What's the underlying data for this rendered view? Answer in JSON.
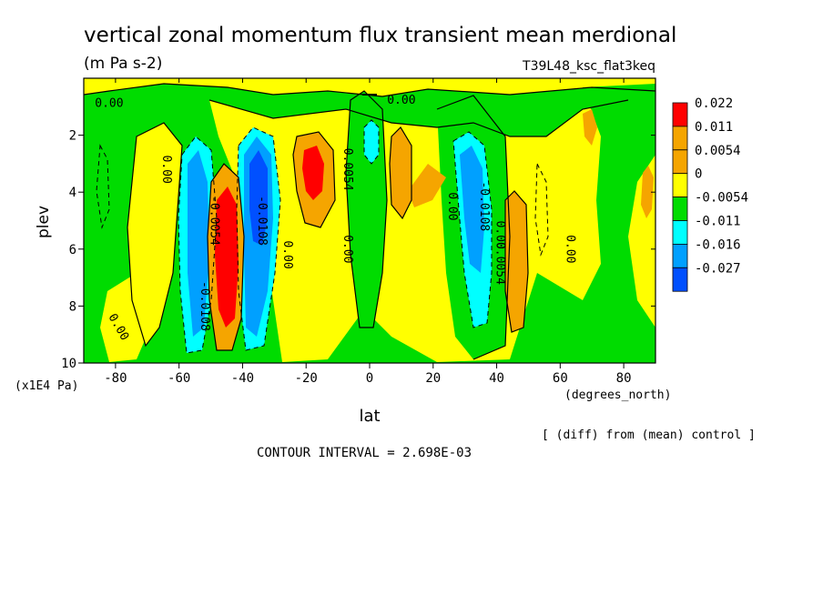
{
  "header": {
    "title": "vertical zonal momentum flux transient mean merdional",
    "units": "(m Pa s-2)",
    "run_name": "T39L48_ksc_flat3keq"
  },
  "footer": {
    "diff_note": "[ (diff) from (mean) control ]",
    "contour_interval": "CONTOUR INTERVAL = 2.698E-03"
  },
  "chart_data": {
    "type": "heatmap",
    "title": "vertical zonal momentum flux transient mean merdional",
    "xlabel": "lat",
    "x_units": "(degrees_north)",
    "ylabel": "plev",
    "y_units": "(x1E4 Pa)",
    "xlim": [
      -90,
      90
    ],
    "ylim": [
      10,
      0
    ],
    "x_ticks": [
      -80,
      -60,
      -40,
      -20,
      0,
      20,
      40,
      60,
      80
    ],
    "y_ticks": [
      2,
      4,
      6,
      8,
      10
    ],
    "x_tick_labels": [
      "-80",
      "-60",
      "-40",
      "-20",
      "0",
      "20",
      "40",
      "60",
      "80"
    ],
    "y_tick_labels": [
      "2",
      "4",
      "6",
      "8",
      "10"
    ],
    "colorbar": {
      "levels": [
        "0.022",
        "0.011",
        "0.0054",
        "0",
        "-0.0054",
        "-0.011",
        "-0.016",
        "-0.027"
      ],
      "colors": [
        "#ff0000",
        "#f5a500",
        "#f5a500",
        "#ffff00",
        "#00dc00",
        "#00ffff",
        "#00a0ff",
        "#0050ff"
      ]
    },
    "features": [
      {
        "lat": -45,
        "plev": 6.5,
        "value": 0.022
      },
      {
        "lat": -35,
        "plev": 4.0,
        "value": -0.027
      },
      {
        "lat": -52,
        "plev": 6.5,
        "value": -0.016
      },
      {
        "lat": -18,
        "plev": 3.5,
        "value": 0.011
      },
      {
        "lat": 32,
        "plev": 4.5,
        "value": -0.016
      },
      {
        "lat": 45,
        "plev": 7.0,
        "value": 0.0054
      },
      {
        "lat": 15,
        "plev": 4.0,
        "value": 0.0054
      },
      {
        "lat": 0,
        "plev": 3.0,
        "value": -0.011
      }
    ],
    "contour_labels": [
      {
        "text": "0.00",
        "lat": -82,
        "plev": 1.0
      },
      {
        "text": "0.00",
        "lat": 10,
        "plev": 0.9
      },
      {
        "text": "0.00",
        "lat": -65,
        "plev": 3.2
      },
      {
        "text": "0.00",
        "lat": -27,
        "plev": 6.2
      },
      {
        "text": "0.00",
        "lat": -8,
        "plev": 6.0
      },
      {
        "text": "0.00",
        "lat": 25,
        "plev": 4.5
      },
      {
        "text": "0.00",
        "lat": 40,
        "plev": 5.5
      },
      {
        "text": "0.00",
        "lat": 62,
        "plev": 6.0
      },
      {
        "text": "0.00",
        "lat": -80,
        "plev": 8.8
      },
      {
        "text": "0.0054",
        "lat": -8,
        "plev": 3.2
      },
      {
        "text": "0.0054",
        "lat": 40,
        "plev": 6.5
      },
      {
        "text": "-0.0054",
        "lat": -50,
        "plev": 5.0
      },
      {
        "text": "-0.0108",
        "lat": -53,
        "plev": 8.0
      },
      {
        "text": "-0.0108",
        "lat": -35,
        "plev": 5.0
      },
      {
        "text": "-0.0108",
        "lat": 35,
        "plev": 4.5
      }
    ]
  }
}
